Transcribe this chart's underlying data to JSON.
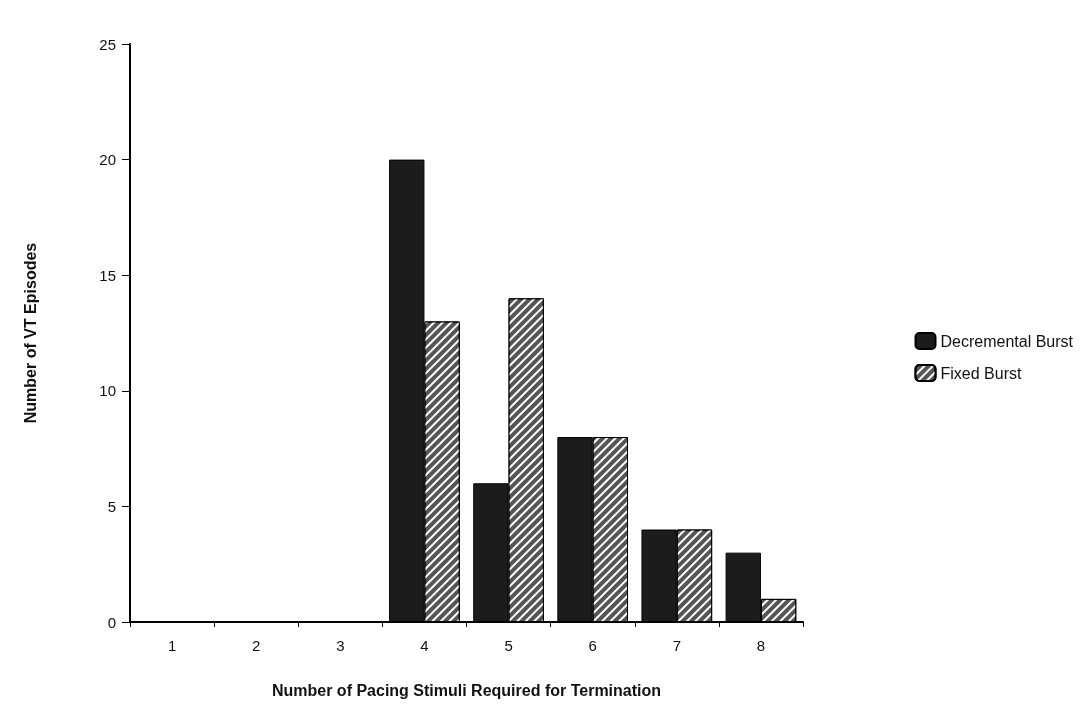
{
  "chart_data": {
    "type": "bar",
    "xlabel": "Number of Pacing Stimuli Required for Termination",
    "ylabel": "Number of VT Episodes",
    "categories": [
      "1",
      "2",
      "3",
      "4",
      "5",
      "6",
      "7",
      "8"
    ],
    "series": [
      {
        "name": "Decremental Burst",
        "color": "#1c1c1c",
        "values": [
          0,
          0,
          0,
          20,
          6,
          8,
          4,
          3
        ]
      },
      {
        "name": "Fixed Burst",
        "color": "#555555",
        "values": [
          0,
          0,
          0,
          13,
          14,
          8,
          4,
          1
        ]
      }
    ],
    "ylim": [
      0,
      25
    ],
    "yticks": [
      0,
      5,
      10,
      15,
      20,
      25
    ],
    "grid": false,
    "legend": "right"
  }
}
